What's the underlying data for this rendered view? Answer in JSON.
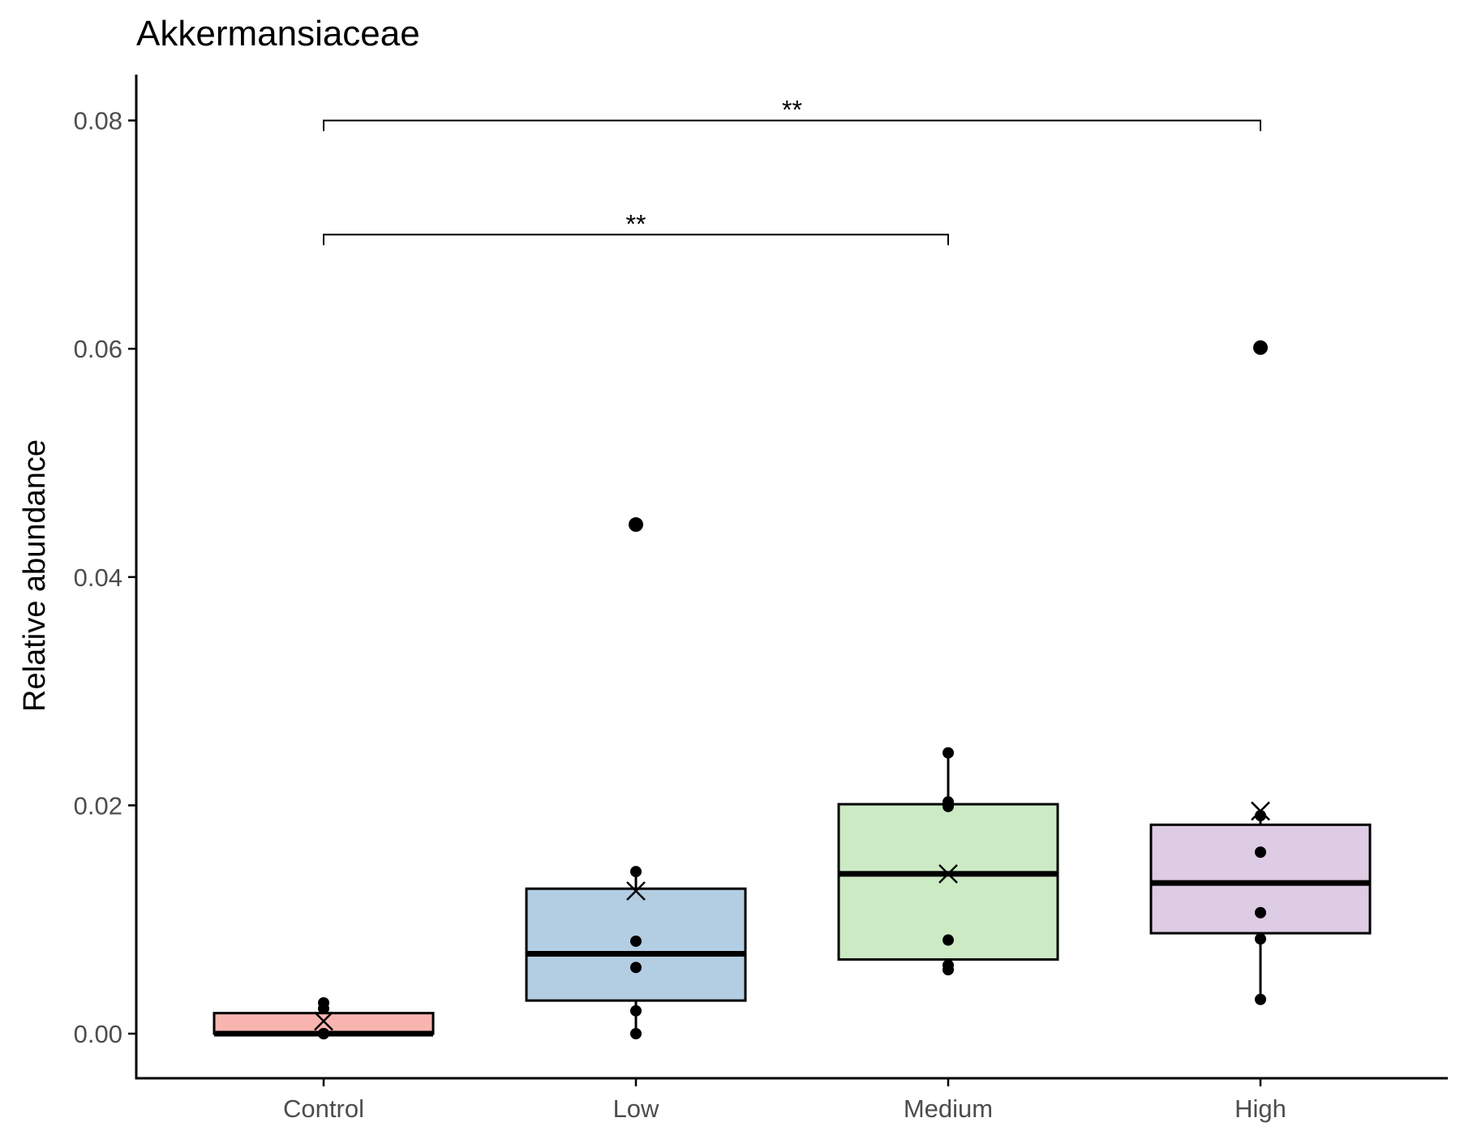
{
  "chart_data": {
    "type": "box",
    "title": "Akkermansiaceae",
    "xlabel": "",
    "ylabel": "Relative abundance",
    "ylim": [
      -0.004,
      0.084
    ],
    "yticks": [
      0.0,
      0.02,
      0.04,
      0.06,
      0.08
    ],
    "ytick_labels": [
      "0.00",
      "0.02",
      "0.04",
      "0.06",
      "0.08"
    ],
    "grid": false,
    "legend": "none",
    "categories": [
      "Control",
      "Low",
      "Medium",
      "High"
    ],
    "boxes": [
      {
        "category": "Control",
        "color": "#F8B5B0",
        "q1": 0.0,
        "median": 0.0,
        "q3": 0.0018,
        "whisker_low": 0.0,
        "whisker_high": 0.0027,
        "mean": 0.0011,
        "points": [
          0.0,
          0.0,
          0.0,
          0.0022,
          0.0027
        ],
        "outliers": []
      },
      {
        "category": "Low",
        "color": "#B3CDE3",
        "q1": 0.0029,
        "median": 0.007,
        "q3": 0.0127,
        "whisker_low": 0.0,
        "whisker_high": 0.0142,
        "mean": 0.0125,
        "points": [
          0.0,
          0.002,
          0.0058,
          0.0081,
          0.0142
        ],
        "outliers": [
          0.0446
        ]
      },
      {
        "category": "Medium",
        "color": "#CCEBC5",
        "q1": 0.0065,
        "median": 0.014,
        "q3": 0.0201,
        "whisker_low": 0.0056,
        "whisker_high": 0.0246,
        "mean": 0.014,
        "points": [
          0.0056,
          0.006,
          0.0082,
          0.0199,
          0.0203,
          0.0246
        ],
        "outliers": []
      },
      {
        "category": "High",
        "color": "#DECBE4",
        "q1": 0.0088,
        "median": 0.0132,
        "q3": 0.0183,
        "whisker_low": 0.003,
        "whisker_high": 0.0193,
        "mean": 0.0195,
        "points": [
          0.003,
          0.0083,
          0.0106,
          0.0159,
          0.0191
        ],
        "outliers": [
          0.0601
        ]
      }
    ],
    "comparisons": [
      {
        "from": "Control",
        "to": "Medium",
        "y": 0.07,
        "label": "**"
      },
      {
        "from": "Control",
        "to": "High",
        "y": 0.08,
        "label": "**"
      }
    ]
  }
}
